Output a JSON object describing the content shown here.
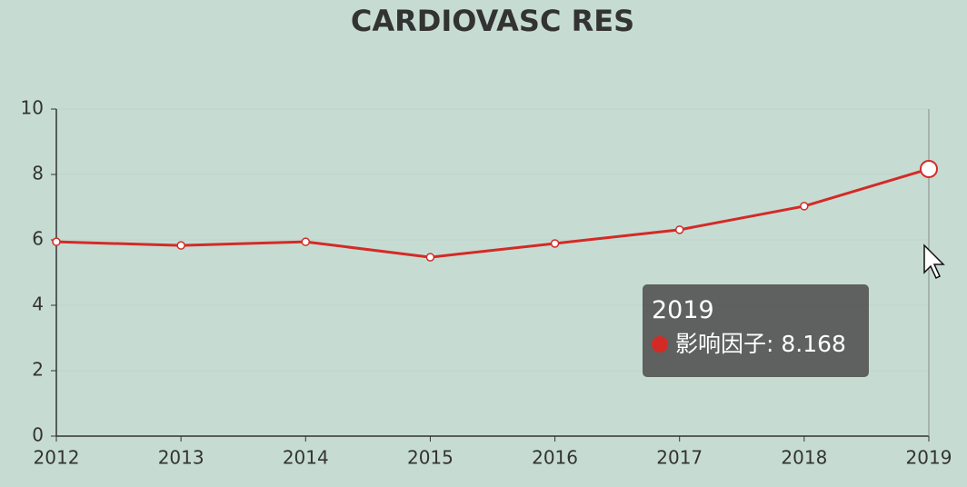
{
  "chart_data": {
    "type": "line",
    "title": "CARDIOVASC RES",
    "categories": [
      "2012",
      "2013",
      "2014",
      "2015",
      "2016",
      "2017",
      "2018",
      "2019"
    ],
    "series": [
      {
        "name": "影响因子",
        "color": "#d42a26",
        "values": [
          5.94,
          5.83,
          5.94,
          5.47,
          5.89,
          6.31,
          7.03,
          8.168
        ]
      }
    ],
    "ylim": [
      0,
      10
    ],
    "yticks": [
      0,
      2,
      4,
      6,
      8,
      10
    ],
    "grid": true,
    "tooltip": {
      "category_index": 7,
      "series_index": 0
    }
  }
}
